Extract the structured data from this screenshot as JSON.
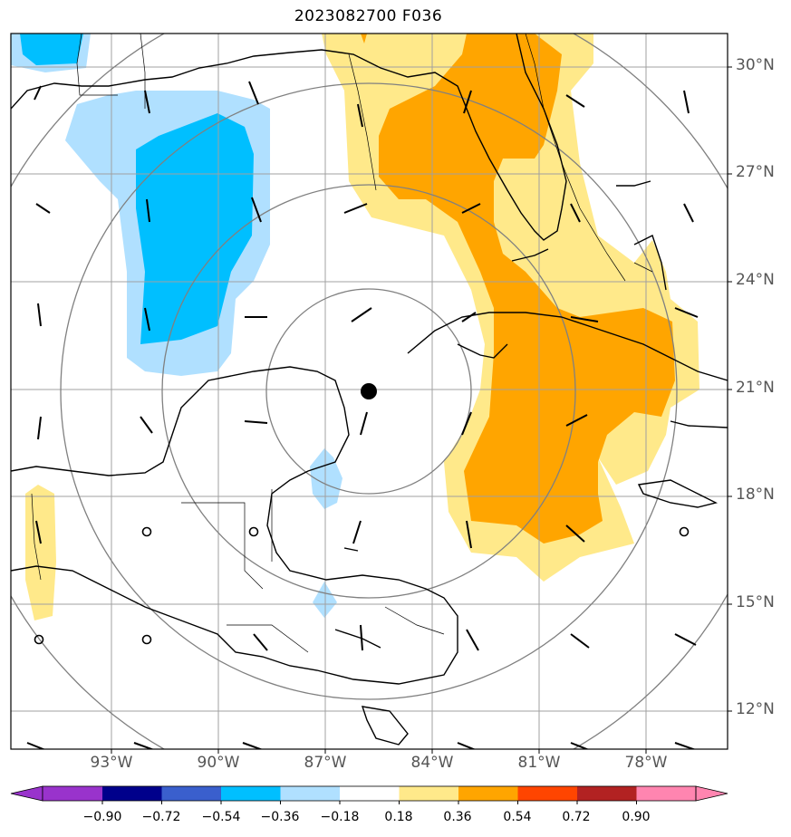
{
  "title": "2023082700 F036",
  "lat_labels": [
    "30°N",
    "27°N",
    "24°N",
    "21°N",
    "18°N",
    "15°N",
    "12°N"
  ],
  "lon_labels": [
    "93°W",
    "90°W",
    "87°W",
    "84°W",
    "81°W",
    "78°W"
  ],
  "colorbar": {
    "ticks": [
      "−0.90",
      "−0.72",
      "−0.54",
      "−0.36",
      "−0.18",
      "0.18",
      "0.36",
      "0.54",
      "0.72",
      "0.90"
    ],
    "colors": [
      "#9933cc",
      "#00008b",
      "#3a5fcd",
      "#00bfff",
      "#b0e0ff",
      "#ffffff",
      "#ffe98a",
      "#ffa500",
      "#ff4500",
      "#b22222",
      "#ff85b0"
    ]
  },
  "colors": {
    "positive_light": "#ffe98a",
    "positive_medium": "#ffa500",
    "negative_light": "#b0e0ff",
    "negative_medium": "#00bfff",
    "grid": "#a0a0a0",
    "range_rings": "#808080"
  },
  "storm_center": {
    "lat": 20.9,
    "lon": -85.7
  }
}
